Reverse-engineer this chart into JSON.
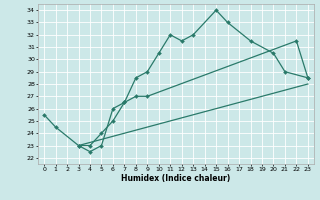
{
  "xlabel": "Humidex (Indice chaleur)",
  "bg_color": "#cce8e8",
  "line_color": "#2a7a6a",
  "grid_color": "#ffffff",
  "xlim": [
    -0.5,
    23.5
  ],
  "ylim": [
    21.5,
    34.5
  ],
  "xticks": [
    0,
    1,
    2,
    3,
    4,
    5,
    6,
    7,
    8,
    9,
    10,
    11,
    12,
    13,
    14,
    15,
    16,
    17,
    18,
    19,
    20,
    21,
    22,
    23
  ],
  "yticks": [
    22,
    23,
    24,
    25,
    26,
    27,
    28,
    29,
    30,
    31,
    32,
    33,
    34
  ],
  "line1_x": [
    0,
    1,
    3,
    4,
    5,
    6,
    7,
    8,
    9,
    10,
    11,
    12,
    13,
    15,
    16,
    18,
    20,
    21,
    23
  ],
  "line1_y": [
    25.5,
    24.5,
    23.0,
    22.5,
    23.0,
    26.0,
    26.5,
    28.5,
    29.0,
    30.5,
    32.0,
    31.5,
    32.0,
    34.0,
    33.0,
    31.5,
    30.5,
    29.0,
    28.5
  ],
  "line2_x": [
    3,
    4,
    5,
    6,
    7,
    8,
    9,
    22,
    23
  ],
  "line2_y": [
    23.0,
    23.0,
    24.0,
    25.0,
    26.5,
    27.0,
    27.0,
    31.5,
    28.5
  ],
  "line3_x": [
    3,
    23
  ],
  "line3_y": [
    23.0,
    28.0
  ]
}
